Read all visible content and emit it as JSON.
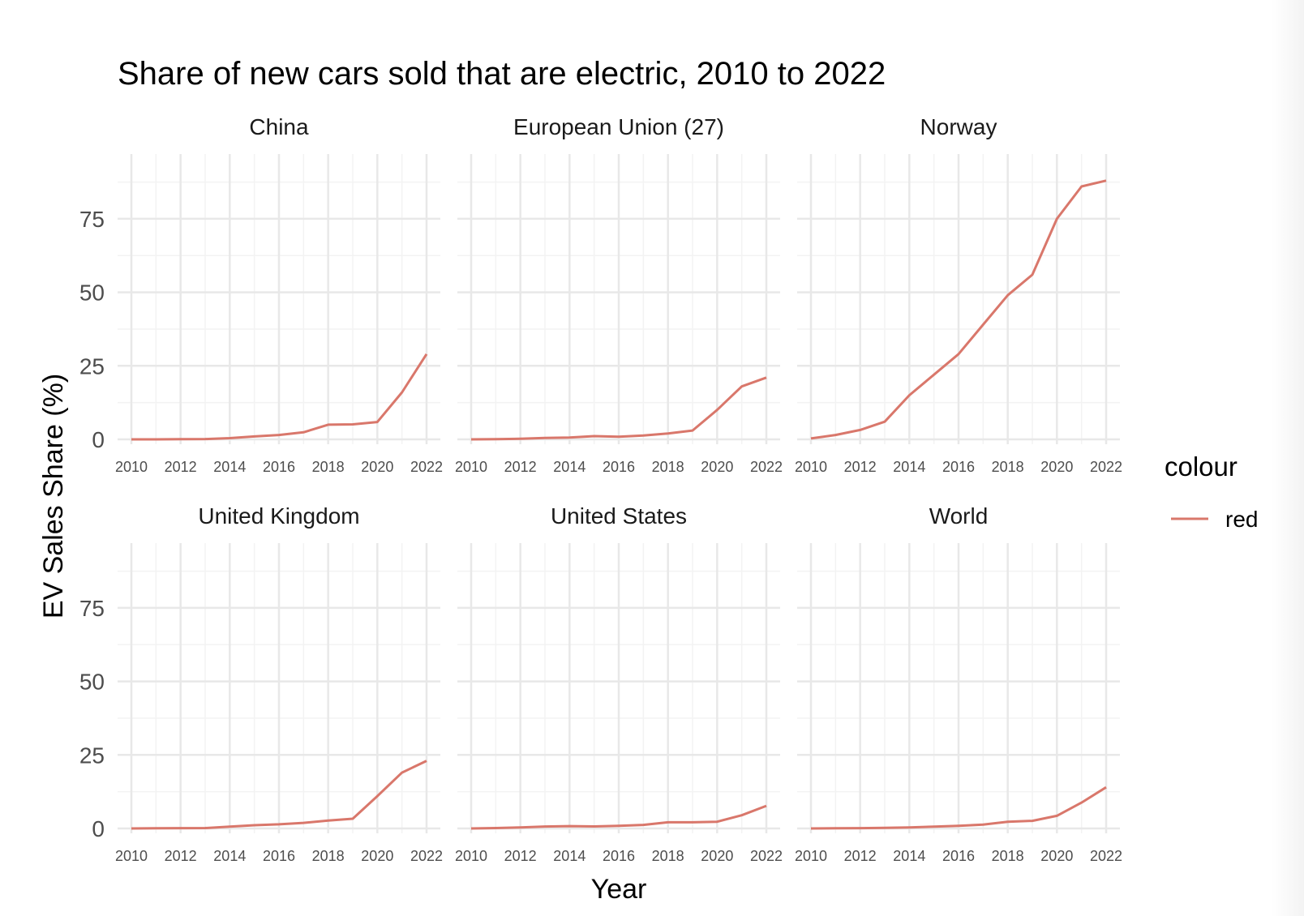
{
  "chart_data": {
    "type": "line",
    "title": "Share of new cars sold that are electric, 2010 to 2022",
    "xlabel": "Year",
    "ylabel": "EV Sales Share (%)",
    "x_ticks": [
      2010,
      2012,
      2014,
      2016,
      2018,
      2020,
      2022
    ],
    "y_ticks": [
      0,
      25,
      50,
      75
    ],
    "xlim": [
      2010,
      2022
    ],
    "ylim": [
      -3,
      94
    ],
    "grid": true,
    "line_color": "#d9776b",
    "legend": {
      "title": "colour",
      "entries": [
        "red"
      ],
      "placement": "right"
    },
    "x": [
      2010,
      2011,
      2012,
      2013,
      2014,
      2015,
      2016,
      2017,
      2018,
      2019,
      2020,
      2021,
      2022
    ],
    "series": [
      {
        "facet": "China",
        "values": [
          0.0,
          0.0,
          0.05,
          0.1,
          0.4,
          1.0,
          1.5,
          2.4,
          5.0,
          5.1,
          5.9,
          16.0,
          29.0
        ]
      },
      {
        "facet": "European Union (27)",
        "values": [
          0.0,
          0.05,
          0.2,
          0.5,
          0.6,
          1.1,
          0.9,
          1.3,
          2.0,
          3.0,
          10.0,
          18.0,
          21.0
        ]
      },
      {
        "facet": "Norway",
        "values": [
          0.3,
          1.5,
          3.2,
          6.0,
          15.0,
          22.0,
          29.0,
          39.0,
          49.0,
          56.0,
          75.0,
          86.0,
          88.0
        ]
      },
      {
        "facet": "United Kingdom",
        "values": [
          0.0,
          0.05,
          0.1,
          0.15,
          0.6,
          1.1,
          1.4,
          1.9,
          2.7,
          3.3,
          11.0,
          19.0,
          23.0
        ]
      },
      {
        "facet": "United States",
        "values": [
          0.0,
          0.15,
          0.35,
          0.65,
          0.8,
          0.7,
          0.9,
          1.2,
          2.1,
          2.1,
          2.3,
          4.5,
          7.7
        ]
      },
      {
        "facet": "World",
        "values": [
          0.0,
          0.05,
          0.1,
          0.2,
          0.35,
          0.6,
          0.9,
          1.3,
          2.3,
          2.6,
          4.3,
          8.8,
          14.0
        ]
      }
    ]
  }
}
